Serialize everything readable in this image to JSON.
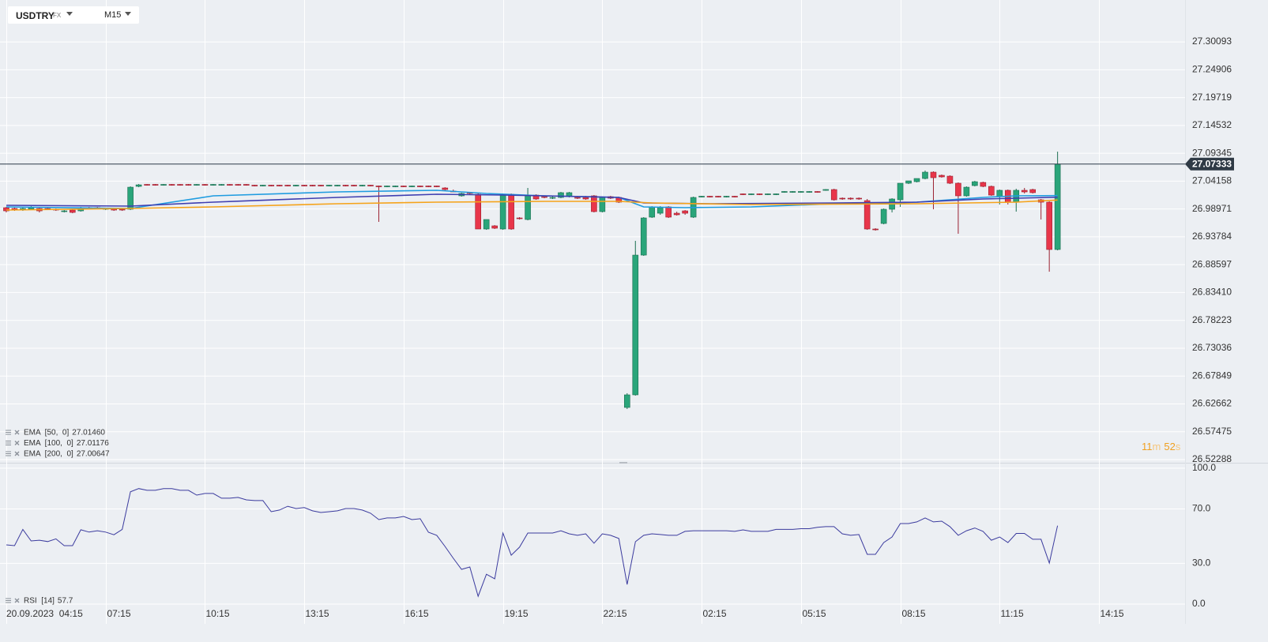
{
  "header": {
    "symbol": "USDTRY",
    "market": "FX",
    "interval": "M15"
  },
  "countdown": [
    "11",
    "m",
    "52",
    "s"
  ],
  "chart_data": [
    {
      "type": "candlestick",
      "up_color": "#2aa57a",
      "down_color": "#e8364a",
      "xlim": [
        -0.76,
        142.4
      ],
      "xticks": [
        {
          "value": 0,
          "label": "20.09.2023  04:15"
        },
        {
          "value": 12,
          "label": "07:15"
        },
        {
          "value": 24,
          "label": "10:15"
        },
        {
          "value": 36,
          "label": "13:15"
        },
        {
          "value": 48,
          "label": "16:15"
        },
        {
          "value": 60,
          "label": "19:15"
        },
        {
          "value": 72,
          "label": "22:15"
        },
        {
          "value": 84,
          "label": "02:15"
        },
        {
          "value": 96,
          "label": "05:15"
        },
        {
          "value": 108,
          "label": "08:15"
        },
        {
          "value": 120,
          "label": "11:15"
        },
        {
          "value": 132,
          "label": "14:15"
        }
      ],
      "ylim": [
        26.517,
        27.379
      ],
      "yticks": [
        27.30093,
        27.24906,
        27.19719,
        27.14532,
        27.09345,
        27.04158,
        26.98971,
        26.93784,
        26.88597,
        {
          "value": 26.8341,
          "label": "26.83410"
        },
        26.78223,
        26.73036,
        26.67849,
        26.62662,
        26.57475,
        26.52288
      ],
      "grid": true,
      "last_price": 27.07333,
      "ohlc": [
        [
          26.9921,
          26.9936,
          26.9833,
          26.9862
        ],
        [
          26.9906,
          26.9921,
          26.9862,
          26.9877
        ],
        [
          26.9877,
          26.9936,
          26.9862,
          26.9906
        ],
        [
          26.9892,
          26.995,
          26.9877,
          26.9921
        ],
        [
          26.9906,
          26.9921,
          26.9833,
          26.9862
        ],
        [
          26.9906,
          26.9921,
          26.9877,
          26.9892
        ],
        [
          26.9892,
          26.9906,
          26.9862,
          26.9877
        ],
        [
          26.9848,
          26.9877,
          26.9833,
          26.9862
        ],
        [
          26.9877,
          26.9892,
          26.9818,
          26.9833
        ],
        [
          26.9862,
          26.9936,
          26.9848,
          26.9921
        ],
        [
          26.9921,
          26.9936,
          26.9892,
          26.9906
        ],
        [
          26.9921,
          26.9936,
          26.9892,
          26.9906
        ],
        [
          26.9892,
          26.9921,
          26.9877,
          26.9906
        ],
        [
          26.9906,
          26.9921,
          26.9862,
          26.9877
        ],
        [
          26.9892,
          26.9906,
          26.9862,
          26.9877
        ],
        [
          26.9892,
          27.0318,
          26.9877,
          27.0303
        ],
        [
          27.0318,
          27.0362,
          27.0303,
          27.0347
        ],
        [
          27.0355,
          27.0362,
          27.0332,
          27.0339
        ],
        [
          27.0355,
          27.0362,
          27.0332,
          27.0339
        ],
        [
          27.0339,
          27.0362,
          27.0332,
          27.0355
        ],
        [
          27.0355,
          27.0362,
          27.0332,
          27.0339
        ],
        [
          27.0355,
          27.0362,
          27.0332,
          27.0339
        ],
        [
          27.0355,
          27.0362,
          27.0332,
          27.0339
        ],
        [
          27.0339,
          27.0362,
          27.0332,
          27.0355
        ],
        [
          27.0355,
          27.0362,
          27.0332,
          27.0339
        ],
        [
          27.0339,
          27.0362,
          27.0332,
          27.0355
        ],
        [
          27.0339,
          27.0362,
          27.0332,
          27.0355
        ],
        [
          27.0355,
          27.0362,
          27.0332,
          27.0339
        ],
        [
          27.0355,
          27.0362,
          27.0332,
          27.0339
        ],
        [
          27.0355,
          27.0362,
          27.0332,
          27.0339
        ],
        [
          27.0341,
          27.0348,
          27.0318,
          27.0325
        ],
        [
          27.0325,
          27.0348,
          27.0318,
          27.0341
        ],
        [
          27.0341,
          27.0348,
          27.0318,
          27.0325
        ],
        [
          27.0341,
          27.0348,
          27.0318,
          27.0325
        ],
        [
          27.0341,
          27.0348,
          27.0318,
          27.0325
        ],
        [
          27.0325,
          27.0348,
          27.0318,
          27.0341
        ],
        [
          27.0341,
          27.0348,
          27.0318,
          27.0325
        ],
        [
          27.0341,
          27.0348,
          27.0318,
          27.0325
        ],
        [
          27.0341,
          27.0348,
          27.0318,
          27.0325
        ],
        [
          27.0325,
          27.0348,
          27.0318,
          27.0341
        ],
        [
          27.0325,
          27.0348,
          27.0318,
          27.0341
        ],
        [
          27.0341,
          27.0348,
          27.0318,
          27.0325
        ],
        [
          27.0341,
          27.0348,
          27.0318,
          27.0325
        ],
        [
          27.0325,
          27.0348,
          27.0318,
          27.0341
        ],
        [
          27.0341,
          27.0348,
          27.0318,
          27.0325
        ],
        [
          27.0326,
          27.0333,
          26.9657,
          27.031
        ],
        [
          27.031,
          27.0333,
          27.0303,
          27.0326
        ],
        [
          27.031,
          27.0333,
          27.0303,
          27.0326
        ],
        [
          27.0326,
          27.0333,
          27.0303,
          27.031
        ],
        [
          27.031,
          27.0333,
          27.0303,
          27.0326
        ],
        [
          27.0326,
          27.0333,
          27.0303,
          27.031
        ],
        [
          27.0326,
          27.0333,
          27.0303,
          27.031
        ],
        [
          27.0326,
          27.0333,
          27.0303,
          27.031
        ],
        [
          27.0289,
          27.0303,
          27.0245,
          27.0259
        ],
        [
          27.023,
          27.0259,
          27.0215,
          27.0222
        ],
        [
          27.0142,
          27.0201,
          27.0127,
          27.0186
        ],
        [
          27.0201,
          27.0215,
          27.0171,
          27.0186
        ],
        [
          27.0171,
          27.0186,
          26.9524,
          26.9524
        ],
        [
          26.9524,
          26.9701,
          26.9509,
          26.9701
        ],
        [
          26.9583,
          26.9597,
          26.9524,
          26.9539
        ],
        [
          26.9524,
          27.0186,
          26.9509,
          27.0171
        ],
        [
          27.0171,
          27.0186,
          26.9509,
          26.9524
        ],
        [
          26.973,
          26.9745,
          26.9701,
          26.9715
        ],
        [
          26.9701,
          27.0289,
          26.9686,
          27.0156
        ],
        [
          27.0156,
          27.0171,
          27.0068,
          27.0083
        ],
        [
          27.0127,
          27.0142,
          27.0097,
          27.0112
        ],
        [
          27.0098,
          27.0127,
          27.0083,
          27.0112
        ],
        [
          27.0112,
          27.0215,
          27.0098,
          27.0201
        ],
        [
          27.0127,
          27.0215,
          27.0112,
          27.0201
        ],
        [
          27.0112,
          27.0127,
          27.0083,
          27.0098
        ],
        [
          27.0112,
          27.0142,
          27.0068,
          27.0083
        ],
        [
          27.0142,
          27.0156,
          26.9833,
          26.9848
        ],
        [
          26.9848,
          27.0127,
          26.9833,
          27.0112
        ],
        [
          27.0127,
          27.0142,
          27.0083,
          27.0098
        ],
        [
          27.0112,
          27.0127,
          27.0009,
          27.0024
        ],
        [
          26.62,
          26.6465,
          26.6171,
          26.6435
        ],
        [
          26.6435,
          26.9303,
          26.642,
          26.9038
        ],
        [
          26.9038,
          26.9745,
          26.9024,
          26.973
        ],
        [
          26.9745,
          26.995,
          26.973,
          26.9936
        ],
        [
          26.9818,
          26.995,
          26.9789,
          26.9921
        ],
        [
          26.9936,
          26.995,
          26.973,
          26.9745
        ],
        [
          26.9818,
          26.9848,
          26.9774,
          26.9789
        ],
        [
          26.9862,
          26.9877,
          26.9789,
          26.9818
        ],
        [
          26.9745,
          27.0127,
          26.973,
          27.0112
        ],
        [
          27.0119,
          27.0142,
          27.0112,
          27.0135
        ],
        [
          27.0135,
          27.0142,
          27.0112,
          27.0119
        ],
        [
          27.0135,
          27.0142,
          27.0112,
          27.0119
        ],
        [
          27.0119,
          27.0142,
          27.0112,
          27.0135
        ],
        [
          27.0135,
          27.0142,
          27.0112,
          27.0119
        ],
        [
          27.0179,
          27.0186,
          27.0156,
          27.0163
        ],
        [
          27.0163,
          27.0186,
          27.0156,
          27.0179
        ],
        [
          27.0179,
          27.0186,
          27.0156,
          27.0163
        ],
        [
          27.0163,
          27.0186,
          27.0156,
          27.0179
        ],
        [
          27.0163,
          27.0186,
          27.0156,
          27.0179
        ],
        [
          27.0207,
          27.023,
          27.02,
          27.0223
        ],
        [
          27.0207,
          27.023,
          27.02,
          27.0223
        ],
        [
          27.0207,
          27.023,
          27.02,
          27.0223
        ],
        [
          27.0207,
          27.023,
          27.02,
          27.0223
        ],
        [
          27.0223,
          27.023,
          27.02,
          27.0207
        ],
        [
          27.0244,
          27.0267,
          27.0237,
          27.026
        ],
        [
          27.0259,
          27.0274,
          27.0053,
          27.0068
        ],
        [
          27.0098,
          27.0112,
          27.0068,
          27.0083
        ],
        [
          27.0098,
          27.0112,
          27.0068,
          27.0083
        ],
        [
          27.0098,
          27.0112,
          27.0068,
          27.0083
        ],
        [
          27.0053,
          27.0083,
          26.9509,
          26.9524
        ],
        [
          26.9524,
          26.9539,
          26.9494,
          26.9509
        ],
        [
          26.9627,
          26.9906,
          26.9612,
          26.9892
        ],
        [
          26.9892,
          27.0098,
          26.9833,
          27.0083
        ],
        [
          27.0068,
          27.0377,
          26.9936,
          27.0377
        ],
        [
          27.0377,
          27.0421,
          27.0362,
          27.0421
        ],
        [
          27.0406,
          27.0465,
          27.0392,
          27.0465
        ],
        [
          27.0465,
          27.0613,
          27.045,
          27.0583
        ],
        [
          27.0583,
          27.0598,
          26.9892,
          27.048
        ],
        [
          27.0524,
          27.0539,
          27.048,
          27.0495
        ],
        [
          27.0509,
          27.0524,
          27.0362,
          27.0377
        ],
        [
          27.0377,
          27.0392,
          26.9436,
          27.0142
        ],
        [
          27.0142,
          27.0318,
          27.0127,
          27.0303
        ],
        [
          27.0333,
          27.0421,
          27.0318,
          27.0406
        ],
        [
          27.0392,
          27.0406,
          27.0303,
          27.0318
        ],
        [
          27.0318,
          27.0333,
          27.0142,
          27.0156
        ],
        [
          27.0127,
          27.0259,
          26.998,
          27.0245
        ],
        [
          27.0245,
          27.0259,
          26.998,
          27.0024
        ],
        [
          27.0024,
          27.0274,
          26.9848,
          27.0245
        ],
        [
          27.0245,
          27.0289,
          27.0186,
          27.0215
        ],
        [
          27.0259,
          27.0274,
          27.0186,
          27.0201
        ],
        [
          27.0068,
          27.0083,
          26.9701,
          27.0024
        ],
        [
          27.0024,
          27.0039,
          26.8729,
          26.9142
        ],
        [
          26.9142,
          27.0965,
          26.9127,
          27.07333
        ]
      ],
      "series": [
        {
          "name": "EMA  [50,  0]",
          "color": "#1f9ce0",
          "legend_value": {
            "value": 27.0146,
            "label": "27.01460"
          },
          "x": [
            0,
            15,
            25,
            40,
            52,
            58,
            65,
            74,
            77,
            82,
            90,
            100,
            105,
            110,
            118,
            122,
            127
          ],
          "values": [
            26.9936,
            26.9906,
            27.0142,
            27.0215,
            27.0245,
            27.0186,
            27.0142,
            27.0112,
            26.9936,
            26.9921,
            26.9936,
            26.9995,
            26.9995,
            27.0024,
            27.0112,
            27.0142,
            27.0146
          ]
        },
        {
          "name": "EMA  [100,  0]",
          "color": "#3f3fb0",
          "legend_value": 27.01176,
          "x": [
            0,
            15,
            25,
            40,
            52,
            60,
            70,
            74,
            77,
            85,
            100,
            110,
            118,
            122,
            127
          ],
          "values": [
            26.9965,
            26.995,
            27.0024,
            27.0112,
            27.0171,
            27.0156,
            27.0127,
            27.0112,
            27.0009,
            26.9995,
            27.0009,
            27.0024,
            27.0083,
            27.0098,
            27.01176
          ]
        },
        {
          "name": "EMA  [200,  0]",
          "color": "#f5a31a",
          "legend_value": 27.00647,
          "x": [
            0,
            15,
            25,
            40,
            52,
            65,
            74,
            78,
            90,
            110,
            122,
            127
          ],
          "values": [
            26.9877,
            26.9906,
            26.9936,
            26.9995,
            27.0024,
            27.0039,
            27.0039,
            27.0009,
            26.998,
            26.9995,
            27.0024,
            27.00647
          ]
        }
      ]
    },
    {
      "type": "line",
      "ylim": [
        -14.5,
        104
      ],
      "yticks": [
        {
          "value": 100,
          "label": "100.0"
        },
        {
          "value": 70,
          "label": "70.0"
        },
        {
          "value": 30,
          "label": "30.0"
        },
        {
          "value": 0,
          "label": "0.0"
        }
      ],
      "series": [
        {
          "name": "RSI  [14]",
          "color": "#3b3b9e",
          "values": [
            43.6,
            43,
            55,
            46.5,
            47,
            46,
            48,
            43,
            43,
            54.7,
            53,
            54,
            53,
            51,
            55,
            82.6,
            85,
            83.7,
            83.7,
            85,
            85,
            83.7,
            83.7,
            80.2,
            81.4,
            81.4,
            77.9,
            77.9,
            78.5,
            76.7,
            76.2,
            76.2,
            68,
            69.2,
            72,
            70.3,
            71,
            68.6,
            67.4,
            68,
            68.6,
            70.3,
            70.3,
            69.2,
            66.9,
            62.2,
            63.4,
            63.4,
            64.5,
            62.2,
            62.8,
            52.9,
            50.6,
            42.4,
            33.7,
            25.6,
            27.3,
            5.8,
            22,
            18.6,
            52.3,
            36,
            41.9,
            52.3,
            52.3,
            52.3,
            52.3,
            54,
            51.7,
            50.6,
            51.7,
            44.8,
            51.7,
            50.6,
            48.3,
            14.5,
            45.9,
            50.6,
            51.7,
            51.2,
            50.6,
            50.6,
            53.5,
            54,
            54,
            54,
            54,
            54,
            53.5,
            54.6,
            53.5,
            53.5,
            53.5,
            55,
            55,
            55,
            55.5,
            55.5,
            56.5,
            57,
            57,
            51.7,
            50.6,
            51.2,
            36.6,
            36.6,
            45.3,
            49.4,
            59.3,
            59.3,
            60.5,
            63.4,
            60.5,
            61,
            57,
            50.6,
            54,
            56,
            53.5,
            47,
            49.4,
            45.3,
            52,
            52,
            47.7,
            47.7,
            30.2,
            57.7
          ]
        }
      ]
    }
  ]
}
